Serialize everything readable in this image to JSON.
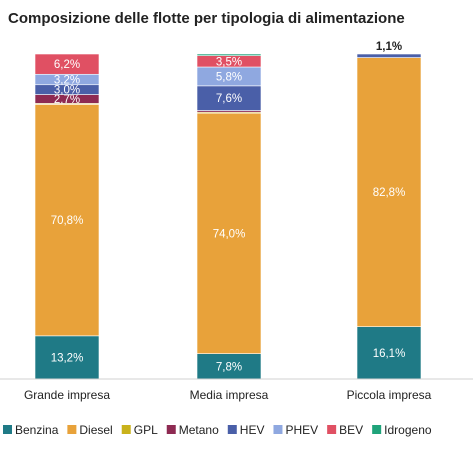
{
  "chart_data": {
    "type": "bar",
    "stacked": true,
    "normalized": true,
    "title": "Composizione delle flotte per tipologia di alimentazione",
    "categories": [
      "Grande impresa",
      "Media impresa",
      "Piccola impresa"
    ],
    "series": [
      {
        "name": "Benzina",
        "color": "#1f7a86",
        "values": [
          13.2,
          7.8,
          16.1
        ],
        "labels": [
          "13,2%",
          "7,8%",
          "16,1%"
        ]
      },
      {
        "name": "Diesel",
        "color": "#e8a23a",
        "values": [
          70.8,
          74.0,
          82.8
        ],
        "labels": [
          "70,8%",
          "74,0%",
          "82,8%"
        ]
      },
      {
        "name": "GPL",
        "color": "#c9b21b",
        "values": [
          0.3,
          0.3,
          0.0
        ],
        "labels": [
          "",
          "",
          ""
        ]
      },
      {
        "name": "Metano",
        "color": "#8e2a52",
        "values": [
          2.7,
          0.5,
          0.0
        ],
        "labels": [
          "2,7%",
          "",
          ""
        ]
      },
      {
        "name": "HEV",
        "color": "#4a5fa8",
        "values": [
          3.0,
          7.6,
          1.1
        ],
        "labels": [
          "3,0%",
          "7,6%",
          "1,1%"
        ]
      },
      {
        "name": "PHEV",
        "color": "#8fa8e0",
        "values": [
          3.2,
          5.8,
          0.0
        ],
        "labels": [
          "3,2%",
          "5,8%",
          ""
        ]
      },
      {
        "name": "BEV",
        "color": "#e05063",
        "values": [
          6.2,
          3.5,
          0.0
        ],
        "labels": [
          "6,2%",
          "3,5%",
          ""
        ]
      },
      {
        "name": "Idrogeno",
        "color": "#1fa37a",
        "values": [
          0.0,
          0.5,
          0.0
        ],
        "labels": [
          "",
          "",
          ""
        ]
      }
    ],
    "ylim": [
      0,
      100
    ],
    "grid": false,
    "legend_position": "bottom"
  }
}
